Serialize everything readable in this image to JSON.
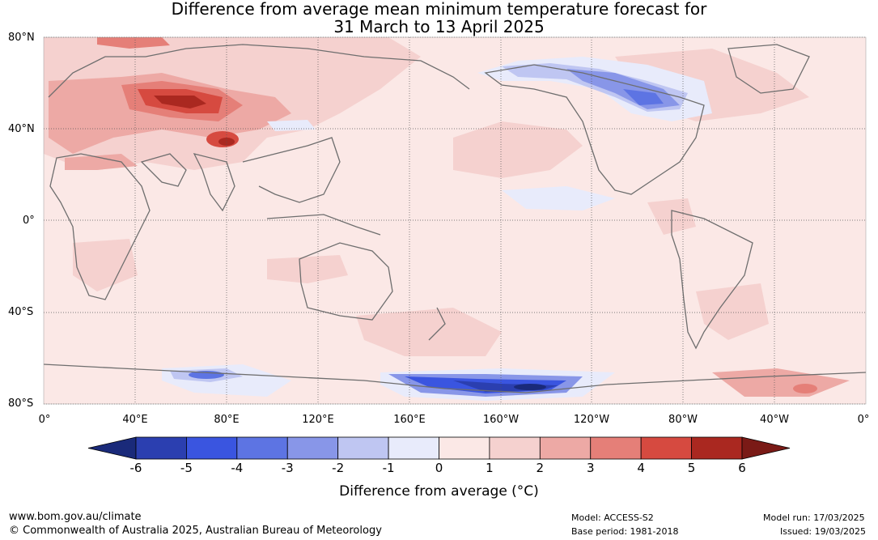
{
  "title_line1": "Difference from average mean minimum temperature forecast for",
  "title_line2": "31 March to 13 April 2025",
  "lat_labels": [
    "80°N",
    "40°N",
    "0°",
    "40°S",
    "80°S"
  ],
  "lon_labels": [
    "0°",
    "40°E",
    "80°E",
    "120°E",
    "160°E",
    "160°W",
    "120°W",
    "80°W",
    "40°W",
    "0°"
  ],
  "colorbar": {
    "ticks": [
      "-6",
      "-5",
      "-4",
      "-3",
      "-2",
      "-1",
      "0",
      "1",
      "2",
      "3",
      "4",
      "5",
      "6"
    ],
    "colors": [
      "#1a2a7a",
      "#2b3fb0",
      "#3a55e0",
      "#5d74e3",
      "#8896e8",
      "#bfc6f2",
      "#e8ebfb",
      "#fbe8e6",
      "#f5d1cf",
      "#eda9a5",
      "#e57f78",
      "#d64a40",
      "#aa2820",
      "#7a1a16"
    ],
    "label": "Difference from average (°C)"
  },
  "footer": {
    "url": "www.bom.gov.au/climate",
    "copyright": "© Commonwealth of Australia 2025, Australian Bureau of Meteorology",
    "model": "Model: ACCESS-S2",
    "base_period": "Base period: 1981-2018",
    "model_run": "Model run: 17/03/2025",
    "issued": "Issued: 19/03/2025"
  }
}
